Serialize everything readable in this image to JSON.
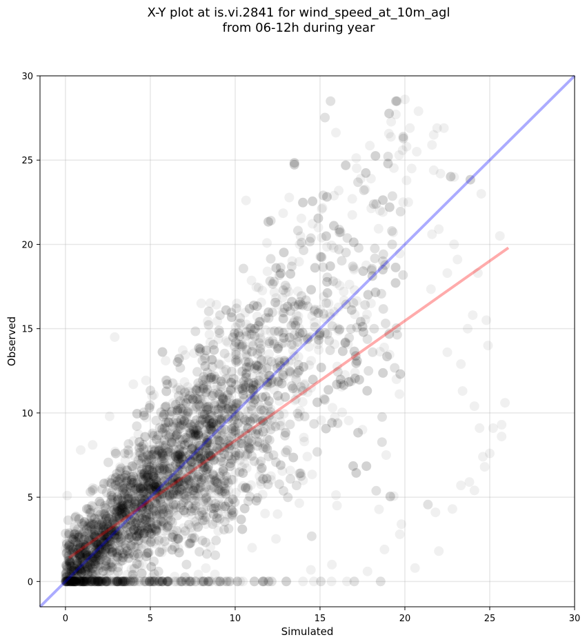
{
  "chart_data": {
    "type": "scatter",
    "title": "X-Y plot at is.vi.2841 for wind_speed_at_10m_agl",
    "subtitle": "from 06-12h during year",
    "xlabel": "Simulated",
    "ylabel": "Observed",
    "xlim": [
      -1.5,
      30
    ],
    "ylim": [
      -1.5,
      30
    ],
    "xticks": [
      0,
      5,
      10,
      15,
      20,
      25,
      30
    ],
    "yticks": [
      0,
      5,
      10,
      15,
      20,
      25,
      30
    ],
    "grid": true,
    "point_color": "#000000",
    "point_alpha": 0.06,
    "point_count_approx": 5000,
    "points_sample": [
      [
        20.0,
        28.6
      ],
      [
        20.8,
        27.9
      ],
      [
        20.3,
        26.9
      ],
      [
        21.7,
        26.5
      ],
      [
        21.6,
        25.9
      ],
      [
        21.9,
        26.9
      ],
      [
        22.3,
        26.9
      ],
      [
        20.1,
        25.8
      ],
      [
        20.7,
        25.5
      ],
      [
        20.4,
        24.5
      ],
      [
        20.1,
        23.8
      ],
      [
        21.7,
        24.4
      ],
      [
        22.1,
        24.2
      ],
      [
        22.9,
        24.0
      ],
      [
        24.5,
        23.0
      ],
      [
        19.9,
        22.5
      ],
      [
        20.2,
        22.5
      ],
      [
        18.0,
        23.9
      ],
      [
        17.4,
        23.9
      ],
      [
        16.9,
        22.7
      ],
      [
        15.1,
        22.1
      ],
      [
        14.9,
        21.0
      ],
      [
        22.0,
        20.9
      ],
      [
        21.6,
        20.6
      ],
      [
        22.9,
        20.0
      ],
      [
        25.6,
        20.5
      ],
      [
        24.3,
        18.3
      ],
      [
        22.5,
        18.3
      ],
      [
        23.1,
        19.1
      ],
      [
        24.0,
        15.8
      ],
      [
        24.8,
        15.5
      ],
      [
        23.7,
        15.0
      ],
      [
        22.5,
        13.6
      ],
      [
        24.9,
        14.0
      ],
      [
        23.3,
        12.9
      ],
      [
        23.4,
        11.3
      ],
      [
        24.1,
        10.4
      ],
      [
        25.9,
        10.6
      ],
      [
        24.4,
        9.1
      ],
      [
        25.7,
        9.3
      ],
      [
        25.2,
        9.1
      ],
      [
        25.7,
        8.6
      ],
      [
        24.6,
        7.4
      ],
      [
        25.0,
        7.6
      ],
      [
        24.7,
        6.8
      ],
      [
        23.8,
        5.9
      ],
      [
        23.3,
        5.7
      ],
      [
        24.1,
        5.4
      ],
      [
        22.8,
        4.3
      ],
      [
        21.8,
        4.1
      ],
      [
        22.0,
        1.8
      ],
      [
        20.6,
        0.8
      ],
      [
        18.8,
        1.9
      ],
      [
        19.7,
        2.8
      ],
      [
        17.8,
        0.6
      ],
      [
        15.7,
        1.0
      ],
      [
        14.0,
        0.0
      ],
      [
        13.0,
        0.0
      ],
      [
        12.0,
        0.0
      ],
      [
        10.3,
        0.0
      ],
      [
        8.0,
        0.0
      ],
      [
        6.0,
        0.0
      ],
      [
        4.0,
        0.0
      ],
      [
        2.9,
        14.5
      ],
      [
        5.9,
        13.1
      ],
      [
        8.0,
        16.5
      ],
      [
        10.1,
        16.5
      ],
      [
        11.9,
        18.4
      ],
      [
        13.8,
        20.0
      ],
      [
        15.1,
        20.4
      ],
      [
        0.1,
        5.1
      ],
      [
        0.9,
        7.8
      ],
      [
        1.6,
        8.1
      ],
      [
        2.6,
        9.8
      ],
      [
        4.0,
        11.7
      ],
      [
        5.1,
        11.0
      ],
      [
        3.0,
        1.5
      ],
      [
        1.9,
        0.1
      ],
      [
        0.6,
        0.3
      ],
      [
        1.1,
        3.5
      ],
      [
        7.0,
        5.0
      ],
      [
        8.5,
        9.0
      ],
      [
        10.0,
        12.0
      ],
      [
        12.0,
        13.5
      ],
      [
        13.5,
        15.5
      ],
      [
        15.5,
        16.5
      ],
      [
        17.0,
        18.5
      ],
      [
        18.0,
        16.5
      ],
      [
        19.5,
        12.0
      ],
      [
        17.5,
        9.0
      ],
      [
        18.9,
        7.5
      ],
      [
        19.8,
        3.4
      ],
      [
        16.0,
        4.5
      ],
      [
        14.0,
        6.0
      ],
      [
        12.5,
        4.0
      ],
      [
        9.0,
        3.0
      ],
      [
        11.0,
        2.0
      ],
      [
        6.5,
        2.5
      ],
      [
        4.5,
        4.0
      ],
      [
        3.0,
        3.0
      ]
    ],
    "lines": [
      {
        "label": "1:1",
        "color": "#0000ff",
        "alpha": 0.33,
        "x": [
          -1.5,
          30
        ],
        "y": [
          -1.5,
          30
        ]
      },
      {
        "label": "fit",
        "color": "#ff0000",
        "alpha": 0.33,
        "x": [
          0.2,
          26.1
        ],
        "y": [
          1.4,
          19.8
        ]
      }
    ]
  }
}
